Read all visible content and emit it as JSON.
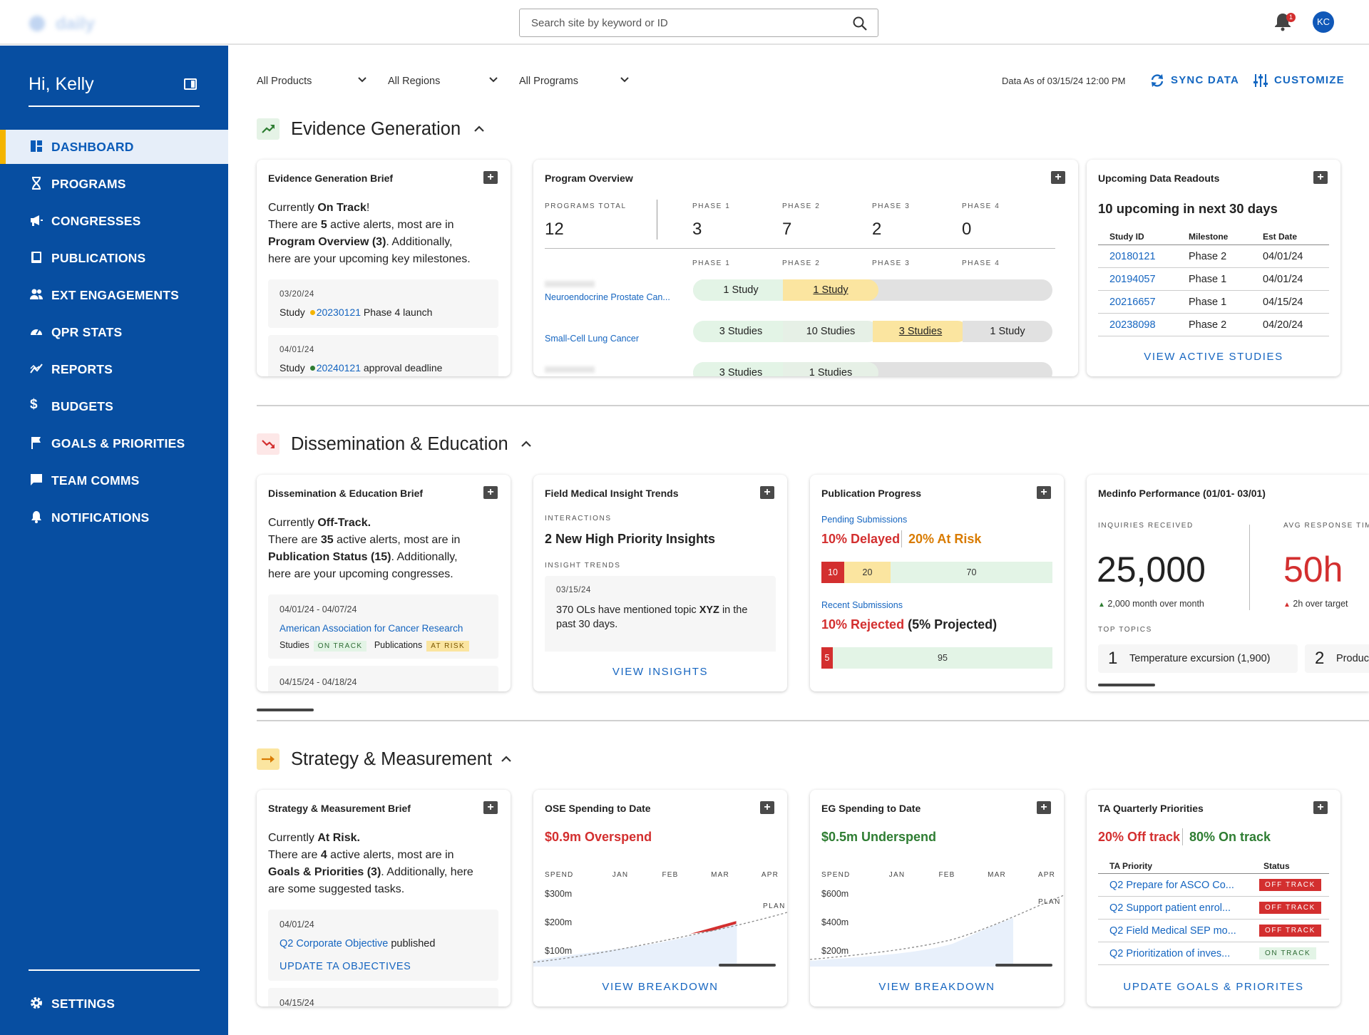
{
  "topbar": {
    "logo_text": "daily",
    "search_placeholder": "Search site by keyword or ID",
    "notification_count": "1",
    "avatar_initials": "KC"
  },
  "sidebar": {
    "greeting": "Hi, Kelly",
    "items": [
      {
        "label": "DASHBOARD",
        "icon": "dashboard-icon"
      },
      {
        "label": "PROGRAMS",
        "icon": "dna-icon"
      },
      {
        "label": "CONGRESSES",
        "icon": "megaphone-icon"
      },
      {
        "label": "PUBLICATIONS",
        "icon": "book-icon"
      },
      {
        "label": "EXT ENGAGEMENTS",
        "icon": "people-icon"
      },
      {
        "label": "QPR STATS",
        "icon": "speedometer-icon"
      },
      {
        "label": "REPORTS",
        "icon": "chart-icon"
      },
      {
        "label": "BUDGETS",
        "icon": "dollar-icon"
      },
      {
        "label": "GOALS & PRIORITIES",
        "icon": "flag-icon"
      },
      {
        "label": "TEAM COMMS",
        "icon": "chat-icon"
      },
      {
        "label": "NOTIFICATIONS",
        "icon": "bell-icon"
      }
    ],
    "settings": "SETTINGS"
  },
  "filters": {
    "products": "All Products",
    "regions": "All Regions",
    "programs": "All Programs",
    "data_as_of": "Data As of 03/15/24 12:00 PM",
    "sync": "SYNC DATA",
    "customize": "CUSTOMIZE"
  },
  "colors": {
    "brand": "#074ea1",
    "accent": "#f4b400",
    "link": "#1565c0",
    "red": "#d32f2f",
    "green": "#2e7d32",
    "orange": "#d97b00"
  },
  "eg": {
    "title": "Evidence Generation",
    "brief": {
      "title": "Evidence Generation Brief",
      "l1a": "Currently ",
      "l1b": "On Track",
      "l1c": "!",
      "l2a": "There are ",
      "l2b": "5",
      "l2c": " active alerts, most are in",
      "l3a": "Program Overview (3)",
      "l3b": ". Additionally,",
      "l4": "here are your upcoming key milestones.",
      "m1_date": "03/20/24",
      "m1_a": "Study",
      "m1_id": "20230121",
      "m1_b": "Phase 4 launch",
      "m2_date": "04/01/24",
      "m2_a": "Study",
      "m2_id": "20240121",
      "m2_b": "approval deadline"
    },
    "overview": {
      "title": "Program Overview",
      "total_label": "PROGRAMS TOTAL",
      "total": "12",
      "phases": [
        "PHASE 1",
        "PHASE 2",
        "PHASE 3",
        "PHASE 4"
      ],
      "counts": [
        "3",
        "7",
        "2",
        "0"
      ],
      "r1_name": "Neuroendocrine Prostate Can...",
      "r1_p1": "1 Study",
      "r1_p2": "1 Study",
      "r2_name": "Small-Cell Lung Cancer",
      "r2_p1": "3 Studies",
      "r2_p2": "10 Studies",
      "r2_p3": "3 Studies",
      "r2_p4": "1 Study",
      "r3_p1": "3 Studies",
      "r3_p2": "1 Studies"
    },
    "readouts": {
      "title": "Upcoming Data Readouts",
      "headline": "10 upcoming in next 30 days",
      "cols": [
        "Study ID",
        "Milestone",
        "Est Date"
      ],
      "rows": [
        [
          "20180121",
          "Phase 2",
          "04/01/24"
        ],
        [
          "20194057",
          "Phase 1",
          "04/01/24"
        ],
        [
          "20216657",
          "Phase 1",
          "04/15/24"
        ],
        [
          "20238098",
          "Phase 2",
          "04/20/24"
        ]
      ],
      "cta": "VIEW ACTIVE STUDIES"
    }
  },
  "de": {
    "title": "Dissemination & Education",
    "brief": {
      "title": "Dissemination & Education Brief",
      "l1a": "Currently ",
      "l1b": "Off-Track.",
      "l2a": "There are ",
      "l2b": "35",
      "l2c": " active alerts, most are in",
      "l3a": "Publication Status (15)",
      "l3b": ". Additionally,",
      "l4": "here are your upcoming congresses.",
      "c1_date": "04/01/24 - 04/07/24",
      "c1_name": "American Association for Cancer Research",
      "c1_studies": "Studies",
      "c1_studies_tag": "ON TRACK",
      "c1_pubs": "Publications",
      "c1_pubs_tag": "AT RISK",
      "c2_date": "04/15/24 - 04/18/24"
    },
    "field": {
      "title": "Field Medical Insight Trends",
      "eyebrow": "INTERACTIONS",
      "headline": "2 New High Priority Insights",
      "trends": "INSIGHT TRENDS",
      "t_date": "03/15/24",
      "t_a": "370 OLs have mentioned topic ",
      "t_b": "XYZ",
      "t_c": " in the",
      "t_d": "past 30 days.",
      "cta": "VIEW INSIGHTS"
    },
    "pubs": {
      "title": "Publication Progress",
      "pending": "Pending Submissions",
      "delayed": "10% Delayed",
      "atrisk": "20% At Risk",
      "bar1": [
        10,
        20,
        70
      ],
      "recent": "Recent Submissions",
      "rejected": "10% Rejected",
      "projected": "(5% Projected)",
      "bar2": [
        5,
        95
      ]
    },
    "medinfo": {
      "title": "Medinfo Performance (01/01- 03/01)",
      "inq_label": "INQUIRIES RECEIVED",
      "inq": "25,000",
      "inq_delta": "2,000 month over month",
      "resp_label": "AVG RESPONSE TIME",
      "resp": "50h",
      "resp_delta": "2h over target",
      "topics_label": "TOP TOPICS",
      "t1_rank": "1",
      "t1": "Temperature excursion (1,900)",
      "t2_rank": "2",
      "t2": "Product"
    }
  },
  "sm": {
    "title": "Strategy & Measurement",
    "brief": {
      "title": "Strategy & Measurement Brief",
      "l1a": "Currently ",
      "l1b": "At Risk.",
      "l2a": "There are ",
      "l2b": "4",
      "l2c": " active alerts, most are in",
      "l3a": "Goals & Priorities (3)",
      "l3b": ". Additionally, here",
      "l4": "are some suggested tasks.",
      "s1_date": "04/01/24",
      "s1_link": "Q2 Corporate Objective",
      "s1_b": " published",
      "s1_cta": "UPDATE TA OBJECTIVES",
      "s2_date": "04/15/24"
    },
    "ose": {
      "title": "OSE Spending to Date",
      "headline": "$0.9m Overspend",
      "cta": "VIEW BREAKDOWN"
    },
    "egs": {
      "title": "EG Spending to Date",
      "headline": "$0.5m Underspend",
      "cta": "VIEW BREAKDOWN"
    },
    "ta": {
      "title": "TA Quarterly Priorities",
      "off": "20% Off track",
      "on": "80% On track",
      "cols": [
        "TA Priority",
        "Status"
      ],
      "rows": [
        [
          "Q2 Prepare for ASCO Co...",
          "OFF TRACK"
        ],
        [
          "Q2 Support patient enrol...",
          "OFF TRACK"
        ],
        [
          "Q2 Field Medical SEP mo...",
          "OFF TRACK"
        ],
        [
          "Q2 Prioritization of inves...",
          "ON TRACK"
        ]
      ],
      "cta": "UPDATE GOALS & PRIORITES"
    }
  },
  "chart_data": [
    {
      "type": "area",
      "title": "OSE Spending to Date",
      "x": [
        "JAN",
        "FEB",
        "MAR",
        "APR"
      ],
      "xlabel": "SPEND",
      "yticks": [
        "$300m",
        "$200m",
        "$100m"
      ],
      "series": [
        {
          "name": "PLAN"
        }
      ]
    },
    {
      "type": "area",
      "title": "EG Spending to Date",
      "x": [
        "JAN",
        "FEB",
        "MAR",
        "APR"
      ],
      "xlabel": "SPEND",
      "yticks": [
        "$600m",
        "$400m",
        "$200m"
      ],
      "series": [
        {
          "name": "PLAN"
        }
      ]
    }
  ]
}
